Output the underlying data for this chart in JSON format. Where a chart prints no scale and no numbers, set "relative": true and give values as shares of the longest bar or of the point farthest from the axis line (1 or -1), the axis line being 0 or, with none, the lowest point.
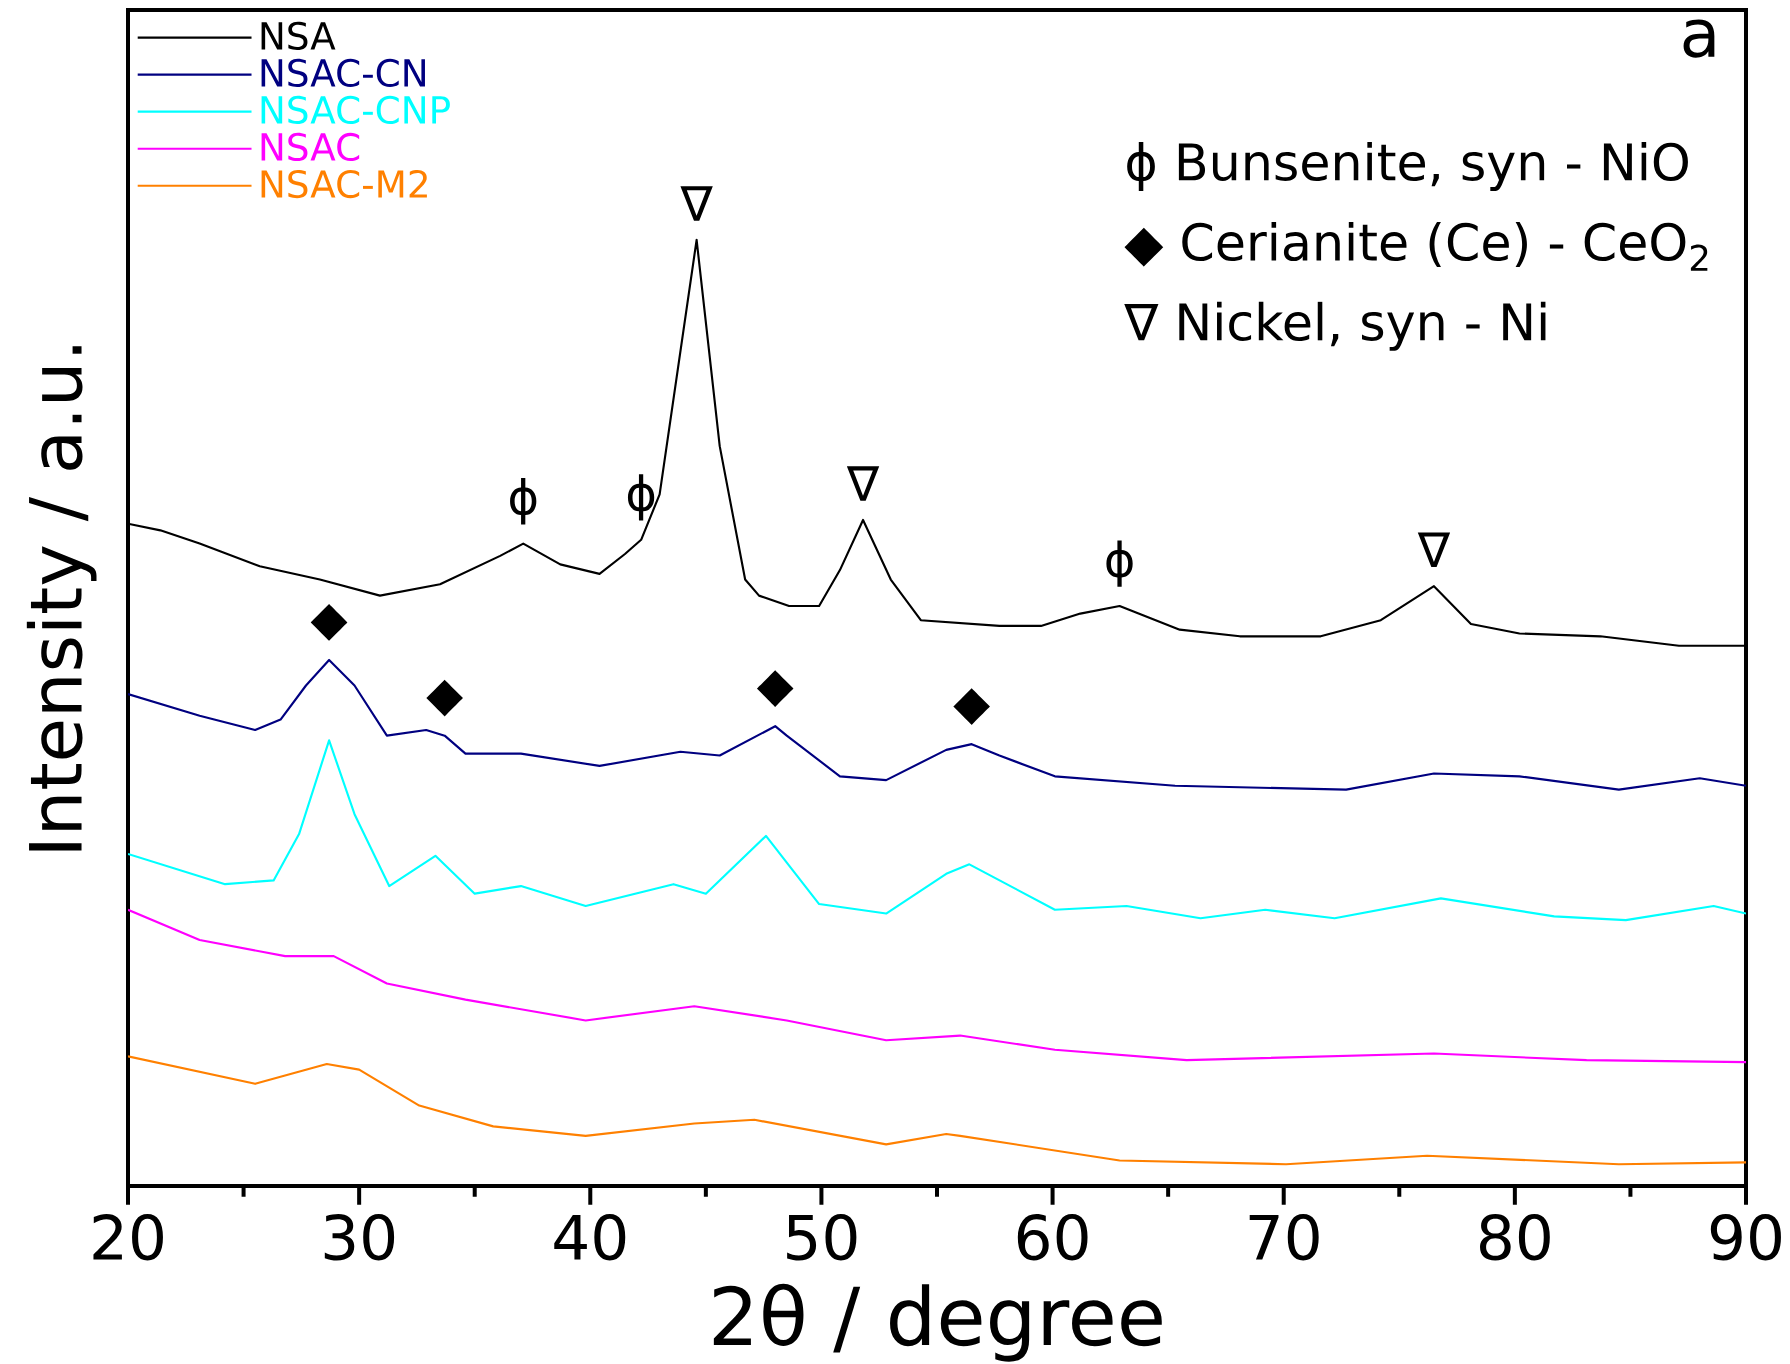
{
  "chart_data": {
    "type": "line",
    "relative": true,
    "xlabel": "2θ / degree",
    "ylabel": "Intensity / a.u.",
    "xlim": [
      20,
      90
    ],
    "xticks": [
      20,
      30,
      40,
      50,
      60,
      70,
      80,
      90
    ],
    "legend": "top left",
    "marker": "none",
    "line_style": "solid",
    "grid": false,
    "series": [
      {
        "name": "NSA",
        "color": "#000000",
        "x": [
          20,
          21.4,
          23.1,
          25.7,
          28.3,
          30.9,
          33.5,
          36.1,
          37.1,
          38.7,
          40.4,
          41.5,
          42.2,
          43.0,
          44.6,
          45.6,
          46.7,
          47.3,
          48.6,
          49.9,
          50.8,
          51.8,
          53.0,
          54.3,
          57.7,
          59.5,
          61.2,
          62.9,
          65.5,
          68.1,
          71.6,
          74.2,
          76.5,
          78.1,
          80.2,
          83.7,
          87.1,
          90
        ],
        "values": [
          0.7,
          0.693,
          0.679,
          0.655,
          0.641,
          0.624,
          0.636,
          0.666,
          0.679,
          0.657,
          0.647,
          0.668,
          0.683,
          0.731,
          1.0,
          0.782,
          0.641,
          0.624,
          0.613,
          0.613,
          0.651,
          0.704,
          0.641,
          0.598,
          0.592,
          0.592,
          0.605,
          0.613,
          0.588,
          0.581,
          0.581,
          0.598,
          0.634,
          0.594,
          0.584,
          0.581,
          0.571,
          0.571
        ]
      },
      {
        "name": "NSAC-CN",
        "color": "#000080",
        "x": [
          20,
          23.1,
          25.5,
          26.6,
          27.7,
          28.7,
          29.8,
          31.2,
          32.9,
          33.7,
          34.6,
          37.0,
          40.4,
          43.9,
          45.6,
          48.0,
          48.5,
          50.8,
          52.8,
          55.4,
          56.5,
          57.7,
          60.1,
          65.3,
          72.7,
          76.5,
          80.2,
          84.5,
          88.0,
          90
        ],
        "values": [
          0.52,
          0.497,
          0.482,
          0.493,
          0.529,
          0.556,
          0.529,
          0.476,
          0.482,
          0.476,
          0.457,
          0.457,
          0.444,
          0.459,
          0.455,
          0.486,
          0.476,
          0.433,
          0.429,
          0.461,
          0.467,
          0.455,
          0.433,
          0.423,
          0.419,
          0.436,
          0.433,
          0.419,
          0.431,
          0.423
        ]
      },
      {
        "name": "NSAC-CNP",
        "color": "#00ffff",
        "x": [
          20,
          24.2,
          26.3,
          27.4,
          28.7,
          29.8,
          31.3,
          33.3,
          35.0,
          37.0,
          39.8,
          43.6,
          45.0,
          47.6,
          49.9,
          52.8,
          55.4,
          56.4,
          60.1,
          63.2,
          66.4,
          69.2,
          72.2,
          76.8,
          81.7,
          84.8,
          88.6,
          90
        ],
        "values": [
          0.351,
          0.319,
          0.323,
          0.372,
          0.471,
          0.393,
          0.317,
          0.349,
          0.309,
          0.317,
          0.296,
          0.319,
          0.309,
          0.37,
          0.298,
          0.288,
          0.33,
          0.34,
          0.292,
          0.296,
          0.283,
          0.292,
          0.283,
          0.304,
          0.285,
          0.281,
          0.296,
          0.288
        ]
      },
      {
        "name": "NSAC",
        "color": "#ff00ff",
        "x": [
          20,
          23.1,
          26.8,
          28.9,
          31.2,
          34.6,
          39.8,
          44.5,
          48.5,
          52.8,
          56.0,
          60.1,
          65.8,
          76.5,
          83.1,
          90
        ],
        "values": [
          0.292,
          0.26,
          0.243,
          0.243,
          0.214,
          0.197,
          0.175,
          0.19,
          0.175,
          0.154,
          0.159,
          0.144,
          0.133,
          0.14,
          0.133,
          0.131
        ]
      },
      {
        "name": "NSAC-M2",
        "color": "#ff8000",
        "x": [
          20,
          25.5,
          28.6,
          30.0,
          32.6,
          35.8,
          39.8,
          44.5,
          47.1,
          52.8,
          55.4,
          56.0,
          62.9,
          70.1,
          76.2,
          84.5,
          90
        ],
        "values": [
          0.137,
          0.108,
          0.129,
          0.123,
          0.085,
          0.063,
          0.053,
          0.066,
          0.07,
          0.044,
          0.055,
          0.053,
          0.027,
          0.023,
          0.032,
          0.023,
          0.025
        ]
      }
    ],
    "annotations": [
      "a",
      "ϕ  Bunsenite, syn - NiO",
      "◆ Cerianite (Ce) - CeO$_{2}$",
      "∇  Nickel, syn - Ni",
      {
        "text": "ϕ",
        "x": 37.1,
        "y": 0.679
      },
      {
        "text": "ϕ",
        "x": 42.2,
        "y": 0.683
      },
      {
        "text": "ϕ",
        "x": 62.9,
        "y": 0.613
      },
      {
        "text": "∇",
        "x": 44.6,
        "y": 1.0
      },
      {
        "text": "∇",
        "x": 51.8,
        "y": 0.704
      },
      {
        "text": "∇",
        "x": 76.5,
        "y": 0.634
      },
      {
        "text": "◆",
        "x": 28.7,
        "y": 0.556
      },
      {
        "text": "◆",
        "x": 33.7,
        "y": 0.476
      },
      {
        "text": "◆",
        "x": 48.0,
        "y": 0.486
      },
      {
        "text": "◆",
        "x": 56.5,
        "y": 0.467
      }
    ]
  }
}
